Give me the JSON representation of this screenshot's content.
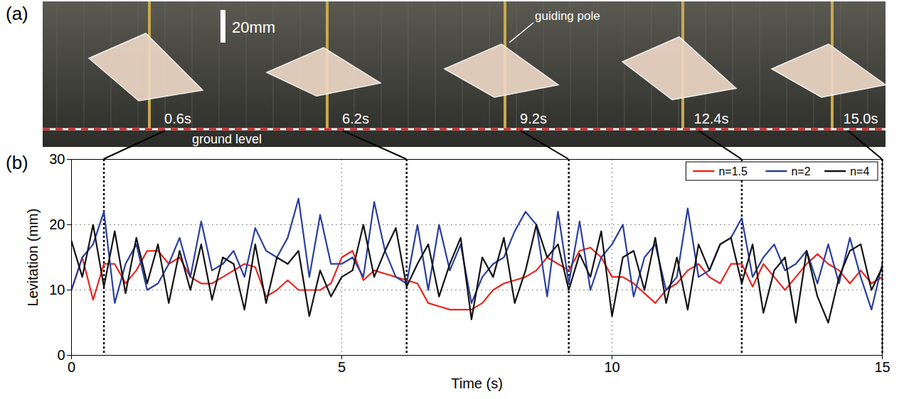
{
  "chart_data": {
    "type": "line",
    "panel_label": "(b)",
    "x_label": "Time (s)",
    "y_label": "Levitation (mm)",
    "x": [
      0,
      0.2,
      0.4,
      0.6,
      0.8,
      1.0,
      1.2,
      1.4,
      1.6,
      1.8,
      2.0,
      2.2,
      2.4,
      2.6,
      2.8,
      3.0,
      3.2,
      3.4,
      3.6,
      3.8,
      4.0,
      4.2,
      4.4,
      4.6,
      4.8,
      5.0,
      5.2,
      5.4,
      5.6,
      5.8,
      6.0,
      6.2,
      6.4,
      6.6,
      6.8,
      7.0,
      7.2,
      7.4,
      7.6,
      7.8,
      8.0,
      8.2,
      8.4,
      8.6,
      8.8,
      9.0,
      9.2,
      9.4,
      9.6,
      9.8,
      10.0,
      10.2,
      10.4,
      10.6,
      10.8,
      11.0,
      11.2,
      11.4,
      11.6,
      11.8,
      12.0,
      12.2,
      12.4,
      12.6,
      12.8,
      13.0,
      13.2,
      13.4,
      13.6,
      13.8,
      14.0,
      14.2,
      14.4,
      14.6,
      14.8,
      15.0
    ],
    "series": [
      {
        "name": "n=1.5",
        "color": "#e8251f",
        "values": [
          10,
          15,
          8.5,
          14,
          14,
          11,
          13,
          16,
          16,
          14,
          15,
          12,
          11,
          11,
          12,
          13,
          14,
          13.5,
          9,
          10,
          11.5,
          10,
          10,
          10,
          11,
          15,
          16,
          11.5,
          13,
          12.5,
          12,
          11.5,
          11,
          8,
          7.5,
          7,
          7,
          7,
          8,
          10,
          11,
          11.5,
          12,
          13,
          15,
          14,
          13,
          16,
          16.5,
          15,
          12,
          12,
          11,
          9.5,
          8,
          10,
          11,
          13,
          14,
          12,
          11,
          14,
          14,
          10.5,
          14,
          12,
          10,
          12,
          14,
          15.5,
          14,
          13,
          11,
          13,
          11,
          12
        ]
      },
      {
        "name": "n=2",
        "color": "#2a3f9e",
        "values": [
          10,
          15,
          17,
          22,
          8,
          14,
          17,
          10,
          11,
          14,
          18,
          12,
          20.5,
          13,
          14,
          16,
          12,
          19.5,
          16,
          15,
          18,
          24,
          12,
          21.5,
          14,
          14,
          15,
          12,
          23.5,
          16,
          12,
          11,
          20,
          10,
          20,
          13,
          17,
          8,
          12,
          14,
          15,
          19,
          22,
          20,
          9,
          22,
          11,
          20.5,
          10,
          15,
          17,
          20,
          9,
          15,
          17,
          10,
          12,
          22.5,
          12,
          13,
          17,
          18,
          21,
          12,
          15,
          17,
          13,
          14,
          16,
          11,
          17,
          11,
          18,
          12,
          7,
          14
        ]
      },
      {
        "name": "n=4",
        "color": "#111111",
        "values": [
          17.5,
          12,
          20,
          10.5,
          19,
          9.5,
          18,
          11,
          17,
          8,
          16,
          10,
          17,
          8.5,
          15,
          14,
          7,
          17,
          8,
          15,
          14,
          16,
          6,
          13,
          9,
          12,
          13,
          20,
          12,
          16,
          19.5,
          10.5,
          14,
          17,
          9,
          14,
          18,
          5.5,
          15,
          12,
          18,
          8,
          13,
          20,
          15,
          17,
          10,
          15.5,
          12,
          19,
          6,
          15,
          16,
          10,
          18,
          8,
          15,
          7,
          17,
          13,
          17,
          18,
          11,
          17,
          6.5,
          13,
          15,
          5,
          16,
          9,
          5,
          12,
          16,
          17,
          10,
          13.5
        ]
      }
    ],
    "xlim": [
      0,
      15
    ],
    "xticks": [
      0,
      5,
      10,
      15
    ],
    "ylim": [
      0,
      30
    ],
    "yticks": [
      0,
      10,
      20,
      30
    ],
    "grid": true,
    "legend": "top-right"
  },
  "photo": {
    "panel_label": "(a)",
    "scale_bar": "20mm",
    "pole_label": "guiding pole",
    "ground_label": "ground level",
    "frames": [
      {
        "value": 0.6,
        "label": "0.6s"
      },
      {
        "value": 6.2,
        "label": "6.2s"
      },
      {
        "value": 9.2,
        "label": "9.2s"
      },
      {
        "value": 12.4,
        "label": "12.4s"
      },
      {
        "value": 15.0,
        "label": "15.0s"
      }
    ]
  }
}
